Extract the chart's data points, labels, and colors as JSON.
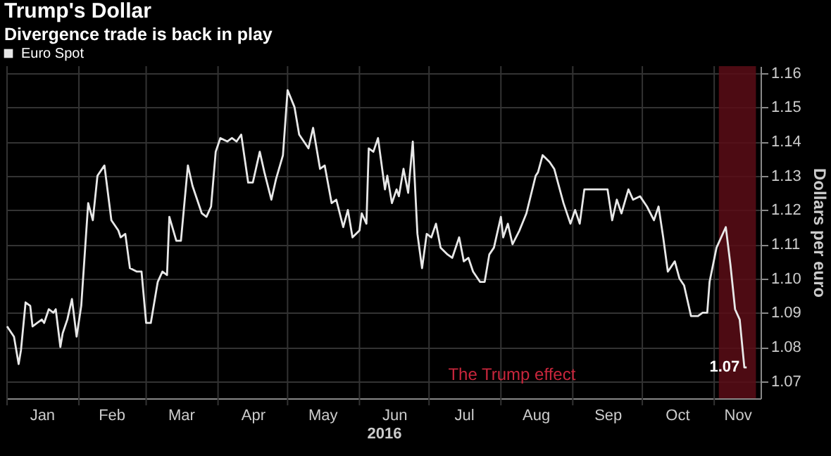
{
  "chart_data": {
    "type": "line",
    "title": "Trump's Dollar",
    "subtitle": "Divergence trade is back in play",
    "xlabel": "2016",
    "ylabel": "Dollars per euro",
    "x": [
      "2016-01-01",
      "2016-01-04",
      "2016-01-06",
      "2016-01-07",
      "2016-01-09",
      "2016-01-11",
      "2016-01-12",
      "2016-01-14",
      "2016-01-16",
      "2016-01-17",
      "2016-01-19",
      "2016-01-21",
      "2016-01-22",
      "2016-01-24",
      "2016-01-25",
      "2016-01-27",
      "2016-01-29",
      "2016-01-31",
      "2016-02-02",
      "2016-02-05",
      "2016-02-07",
      "2016-02-09",
      "2016-02-12",
      "2016-02-15",
      "2016-02-18",
      "2016-02-19",
      "2016-02-21",
      "2016-02-23",
      "2016-02-26",
      "2016-02-28",
      "2016-03-01",
      "2016-03-03",
      "2016-03-06",
      "2016-03-08",
      "2016-03-10",
      "2016-03-11",
      "2016-03-14",
      "2016-03-16",
      "2016-03-19",
      "2016-03-21",
      "2016-03-23",
      "2016-03-25",
      "2016-03-27",
      "2016-03-29",
      "2016-03-31",
      "2016-04-02",
      "2016-04-05",
      "2016-04-07",
      "2016-04-09",
      "2016-04-11",
      "2016-04-14",
      "2016-04-16",
      "2016-04-19",
      "2016-04-21",
      "2016-04-24",
      "2016-04-26",
      "2016-04-29",
      "2016-05-01",
      "2016-05-04",
      "2016-05-06",
      "2016-05-10",
      "2016-05-12",
      "2016-05-15",
      "2016-05-17",
      "2016-05-20",
      "2016-05-22",
      "2016-05-25",
      "2016-05-27",
      "2016-05-29",
      "2016-06-01",
      "2016-06-02",
      "2016-06-04",
      "2016-06-05",
      "2016-06-07",
      "2016-06-09",
      "2016-06-12",
      "2016-06-13",
      "2016-06-15",
      "2016-06-17",
      "2016-06-18",
      "2016-06-20",
      "2016-06-22",
      "2016-06-24",
      "2016-06-26",
      "2016-06-28",
      "2016-06-30",
      "2016-07-02",
      "2016-07-04",
      "2016-07-06",
      "2016-07-09",
      "2016-07-11",
      "2016-07-14",
      "2016-07-16",
      "2016-07-18",
      "2016-07-20",
      "2016-07-23",
      "2016-07-25",
      "2016-07-27",
      "2016-07-29",
      "2016-08-01",
      "2016-08-02",
      "2016-08-04",
      "2016-08-06",
      "2016-08-09",
      "2016-08-12",
      "2016-08-16",
      "2016-08-17",
      "2016-08-19",
      "2016-08-22",
      "2016-08-24",
      "2016-08-26",
      "2016-08-28",
      "2016-08-31",
      "2016-09-02",
      "2016-09-04",
      "2016-09-06",
      "2016-09-09",
      "2016-09-13",
      "2016-09-16",
      "2016-09-18",
      "2016-09-20",
      "2016-09-22",
      "2016-09-25",
      "2016-09-27",
      "2016-09-30",
      "2016-10-03",
      "2016-10-06",
      "2016-10-08",
      "2016-10-10",
      "2016-10-12",
      "2016-10-15",
      "2016-10-17",
      "2016-10-19",
      "2016-10-22",
      "2016-10-25",
      "2016-10-27",
      "2016-10-29",
      "2016-10-30",
      "2016-11-02",
      "2016-11-06",
      "2016-11-08",
      "2016-11-10",
      "2016-11-12",
      "2016-11-14",
      "2016-11-15"
    ],
    "series": [
      {
        "name": "Euro Spot",
        "color": "#e8e8e8",
        "values": [
          1.086,
          1.083,
          1.075,
          1.079,
          1.093,
          1.092,
          1.086,
          1.087,
          1.088,
          1.087,
          1.091,
          1.09,
          1.091,
          1.08,
          1.084,
          1.088,
          1.094,
          1.083,
          1.092,
          1.122,
          1.117,
          1.13,
          1.133,
          1.117,
          1.114,
          1.112,
          1.113,
          1.103,
          1.102,
          1.102,
          1.087,
          1.087,
          1.099,
          1.102,
          1.101,
          1.118,
          1.111,
          1.111,
          1.133,
          1.127,
          1.123,
          1.119,
          1.118,
          1.121,
          1.137,
          1.141,
          1.14,
          1.141,
          1.14,
          1.142,
          1.128,
          1.128,
          1.137,
          1.131,
          1.123,
          1.129,
          1.136,
          1.155,
          1.15,
          1.142,
          1.138,
          1.144,
          1.132,
          1.133,
          1.122,
          1.123,
          1.115,
          1.12,
          1.112,
          1.114,
          1.119,
          1.116,
          1.138,
          1.137,
          1.141,
          1.126,
          1.13,
          1.122,
          1.126,
          1.124,
          1.132,
          1.125,
          1.14,
          1.113,
          1.103,
          1.113,
          1.112,
          1.116,
          1.109,
          1.107,
          1.106,
          1.112,
          1.105,
          1.106,
          1.102,
          1.099,
          1.099,
          1.107,
          1.109,
          1.118,
          1.112,
          1.116,
          1.11,
          1.114,
          1.119,
          1.13,
          1.131,
          1.136,
          1.134,
          1.132,
          1.127,
          1.122,
          1.116,
          1.12,
          1.116,
          1.126,
          1.126,
          1.126,
          1.126,
          1.117,
          1.123,
          1.119,
          1.126,
          1.123,
          1.124,
          1.121,
          1.117,
          1.121,
          1.112,
          1.102,
          1.105,
          1.1,
          1.098,
          1.089,
          1.089,
          1.09,
          1.09,
          1.099,
          1.109,
          1.115,
          1.104,
          1.091,
          1.088,
          1.074,
          1.074
        ],
        "value_labels": [
          null,
          null,
          null,
          null,
          null,
          null,
          null,
          null,
          null,
          null,
          null,
          null,
          null,
          null,
          null,
          null,
          null,
          null,
          null,
          null,
          null,
          null,
          null,
          null,
          null,
          null,
          null,
          null,
          null,
          null,
          null,
          null,
          null,
          null,
          null,
          null,
          null,
          null,
          null,
          null,
          null,
          null,
          null,
          null,
          null,
          null,
          null,
          null,
          null,
          null,
          null,
          null,
          null,
          null,
          null,
          null,
          null,
          null,
          null,
          null,
          null,
          null,
          null,
          null,
          null,
          null,
          null,
          null,
          null,
          null,
          null,
          null,
          null,
          null,
          null,
          null,
          null,
          null,
          null,
          null,
          null,
          null,
          null,
          null,
          null,
          null,
          null,
          null,
          null,
          null,
          null,
          null,
          null,
          null,
          null,
          null,
          null,
          null,
          null,
          null,
          null,
          null,
          null,
          null,
          null,
          null,
          null,
          null,
          null,
          null,
          null,
          null,
          null,
          null,
          null,
          null,
          null,
          null,
          null,
          null,
          null,
          null,
          null,
          null,
          null,
          null,
          null,
          null,
          null,
          null,
          null,
          null,
          null,
          null,
          null,
          null,
          null,
          null,
          null,
          null,
          null,
          null,
          null,
          null,
          "1.07"
        ]
      }
    ],
    "xlim": [
      "2016-01-01",
      "2016-11-21"
    ],
    "xticks": [
      {
        "value": "2016-01-01",
        "label": null
      },
      {
        "value": "2016-01-16",
        "label": "Jan"
      },
      {
        "value": "2016-02-01",
        "label": null
      },
      {
        "value": "2016-02-15",
        "label": "Feb"
      },
      {
        "value": "2016-03-01",
        "label": null
      },
      {
        "value": "2016-03-16",
        "label": "Mar"
      },
      {
        "value": "2016-04-01",
        "label": null
      },
      {
        "value": "2016-04-16",
        "label": "Apr"
      },
      {
        "value": "2016-05-01",
        "label": null
      },
      {
        "value": "2016-05-16",
        "label": "May"
      },
      {
        "value": "2016-06-01",
        "label": null
      },
      {
        "value": "2016-06-16",
        "label": "Jun"
      },
      {
        "value": "2016-07-01",
        "label": null
      },
      {
        "value": "2016-07-16",
        "label": "Jul"
      },
      {
        "value": "2016-08-01",
        "label": null
      },
      {
        "value": "2016-08-16",
        "label": "Aug"
      },
      {
        "value": "2016-09-01",
        "label": null
      },
      {
        "value": "2016-09-16",
        "label": "Sep"
      },
      {
        "value": "2016-10-01",
        "label": null
      },
      {
        "value": "2016-10-16",
        "label": "Oct"
      },
      {
        "value": "2016-11-01",
        "label": null
      },
      {
        "value": "2016-11-11",
        "label": "Nov"
      }
    ],
    "ylim": [
      1.065,
      1.162
    ],
    "yticks": [
      1.07,
      1.08,
      1.09,
      {
        "value": 1.1,
        "label": "1.10"
      },
      1.11,
      1.12,
      1.13,
      1.14,
      1.15,
      1.16
    ],
    "bands": [
      {
        "axis": "x",
        "from": "2016-11-03",
        "to": "2016-11-19",
        "color": "#5a0d16"
      }
    ],
    "annotations": [
      "The Trump effect"
    ],
    "grid": true,
    "legend": "top left",
    "marker": "none",
    "line_style": "solid"
  }
}
